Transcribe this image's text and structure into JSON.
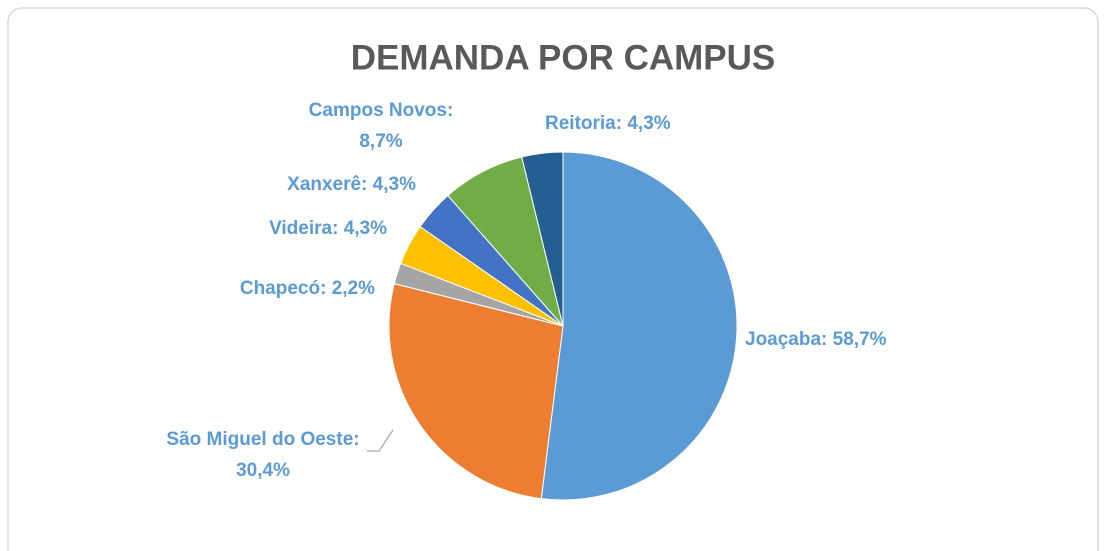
{
  "chart_data": {
    "type": "pie",
    "title": "DEMANDA POR CAMPUS",
    "values": [
      58.7,
      30.4,
      2.2,
      4.3,
      4.3,
      8.7,
      4.3
    ],
    "value_labels": [
      "Joaçaba: 58,7%",
      "São Miguel do Oeste: 30,4%",
      "Chapecó: 2,2%",
      "Videira: 4,3%",
      "Xanxerê: 4,3%",
      "Campos Novos: 8,7%",
      "Reitoria: 4,3%"
    ],
    "colors": [
      "#5b9bd5",
      "#ed7d31",
      "#a5a5a5",
      "#ffc000",
      "#4472c4",
      "#70ad47",
      "#255e91"
    ]
  }
}
